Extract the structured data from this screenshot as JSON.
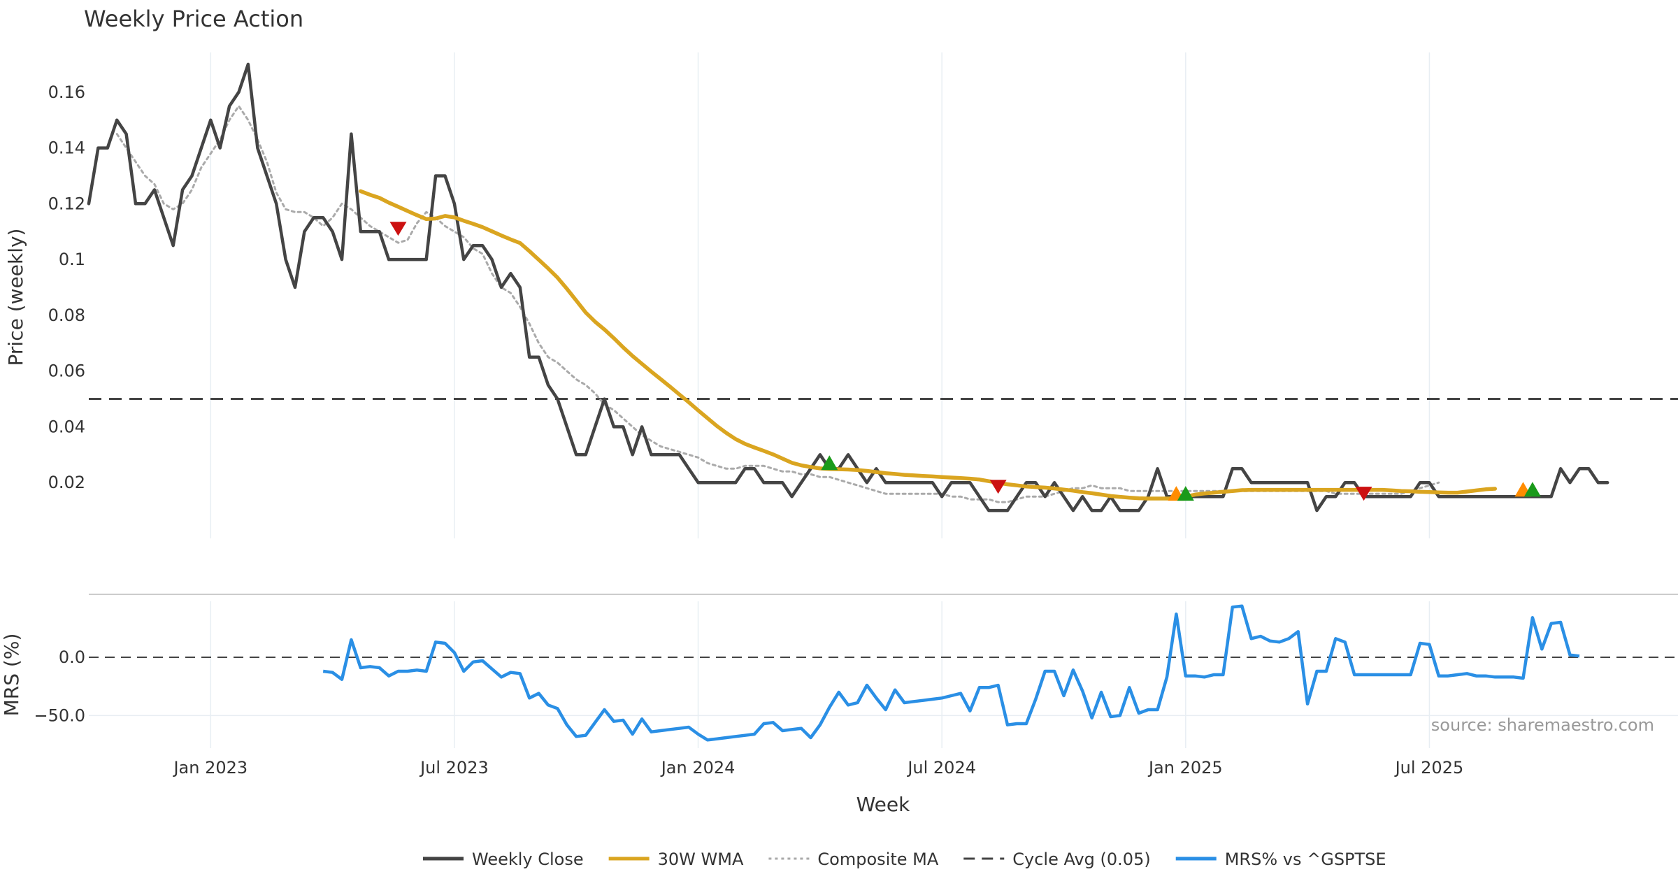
{
  "chart_data": [
    {
      "type": "line",
      "title": "Weekly Price Action",
      "ylabel": "Price (weekly)",
      "ylim": [
        0.0,
        0.178
      ],
      "yticks": [
        0.02,
        0.04,
        0.06,
        0.08,
        0.1,
        0.12,
        0.14,
        0.16
      ],
      "ytick_labels": [
        "0.02",
        "0.04",
        "0.06",
        "0.08",
        "0.1",
        "0.12",
        "0.14",
        "0.16"
      ],
      "x_start": "2022-10-03",
      "x_end": "2025-11-24",
      "x_step": "weekly",
      "grid": "vertical",
      "cycle_avg": 0.05,
      "series": [
        {
          "name": "Weekly Close",
          "color": "#444444",
          "start_index": 0,
          "values": [
            0.12,
            0.14,
            0.14,
            0.15,
            0.145,
            0.12,
            0.12,
            0.125,
            0.115,
            0.105,
            0.125,
            0.13,
            0.14,
            0.15,
            0.14,
            0.155,
            0.16,
            0.17,
            0.14,
            0.13,
            0.12,
            0.1,
            0.09,
            0.11,
            0.115,
            0.115,
            0.11,
            0.1,
            0.145,
            0.11,
            0.11,
            0.11,
            0.1,
            0.1,
            0.1,
            0.1,
            0.1,
            0.13,
            0.13,
            0.12,
            0.1,
            0.105,
            0.105,
            0.1,
            0.09,
            0.095,
            0.09,
            0.065,
            0.065,
            0.055,
            0.05,
            0.04,
            0.03,
            0.03,
            0.04,
            0.05,
            0.04,
            0.04,
            0.03,
            0.04,
            0.03,
            0.03,
            0.03,
            0.03,
            0.025,
            0.02,
            0.02,
            0.02,
            0.02,
            0.02,
            0.025,
            0.025,
            0.02,
            0.02,
            0.02,
            0.015,
            0.02,
            0.025,
            0.03,
            0.025,
            0.025,
            0.03,
            0.025,
            0.02,
            0.025,
            0.02,
            0.02,
            0.02,
            0.02,
            0.02,
            0.02,
            0.015,
            0.02,
            0.02,
            0.02,
            0.015,
            0.01,
            0.01,
            0.01,
            0.015,
            0.02,
            0.02,
            0.015,
            0.02,
            0.015,
            0.01,
            0.015,
            0.01,
            0.01,
            0.015,
            0.01,
            0.01,
            0.01,
            0.015,
            0.025,
            0.015,
            0.015,
            0.015,
            0.015,
            0.015,
            0.015,
            0.015,
            0.025,
            0.025,
            0.02,
            0.02,
            0.02,
            0.02,
            0.02,
            0.02,
            0.02,
            0.01,
            0.015,
            0.015,
            0.02,
            0.02,
            0.015,
            0.015,
            0.015,
            0.015,
            0.015,
            0.015,
            0.02,
            0.02,
            0.015,
            0.015,
            0.015,
            0.015,
            0.015,
            0.015,
            0.015,
            0.015,
            0.015,
            0.015,
            0.015,
            0.015,
            0.015,
            0.025,
            0.02,
            0.025,
            0.025,
            0.02,
            0.02
          ]
        },
        {
          "name": "30W WMA",
          "color": "#DAA520",
          "start_index": 29,
          "values": [
            0.1245,
            0.1232,
            0.1221,
            0.1204,
            0.1189,
            0.1174,
            0.1159,
            0.1145,
            0.1147,
            0.1156,
            0.1151,
            0.1139,
            0.1128,
            0.1116,
            0.1101,
            0.1086,
            0.1072,
            0.1059,
            0.103,
            0.0999,
            0.0968,
            0.0935,
            0.0895,
            0.0853,
            0.081,
            0.0777,
            0.0749,
            0.0718,
            0.0685,
            0.0654,
            0.0626,
            0.0598,
            0.0571,
            0.0544,
            0.0516,
            0.0488,
            0.0459,
            0.0431,
            0.0403,
            0.0378,
            0.0356,
            0.0339,
            0.0326,
            0.0314,
            0.0301,
            0.0286,
            0.0271,
            0.0262,
            0.0256,
            0.0251,
            0.0249,
            0.0248,
            0.0247,
            0.0245,
            0.0242,
            0.0238,
            0.0234,
            0.0231,
            0.0228,
            0.0226,
            0.0224,
            0.0222,
            0.022,
            0.0218,
            0.0216,
            0.0214,
            0.0211,
            0.0205,
            0.0199,
            0.0194,
            0.019,
            0.0186,
            0.0184,
            0.0182,
            0.0179,
            0.0175,
            0.0171,
            0.0166,
            0.0162,
            0.0157,
            0.0152,
            0.0149,
            0.0146,
            0.0144,
            0.0143,
            0.0143,
            0.0143,
            0.0144,
            0.015,
            0.0157,
            0.0161,
            0.0164,
            0.0167,
            0.017,
            0.0173,
            0.0174,
            0.0174,
            0.0174,
            0.0174,
            0.0174,
            0.0174,
            0.0174,
            0.0174,
            0.0174,
            0.0174,
            0.0174,
            0.0174,
            0.0174,
            0.0174,
            0.0174,
            0.0172,
            0.017,
            0.0169,
            0.0167,
            0.0166,
            0.0165,
            0.0164,
            0.0164,
            0.0168,
            0.0172,
            0.0176,
            0.0178
          ]
        },
        {
          "name": "Composite MA",
          "color": "#aaaaaa",
          "start_index": 3,
          "values": [
            0.145,
            0.14,
            0.135,
            0.13,
            0.127,
            0.12,
            0.118,
            0.12,
            0.125,
            0.133,
            0.138,
            0.143,
            0.15,
            0.155,
            0.15,
            0.143,
            0.135,
            0.124,
            0.118,
            0.117,
            0.117,
            0.115,
            0.112,
            0.115,
            0.12,
            0.118,
            0.115,
            0.112,
            0.11,
            0.108,
            0.106,
            0.107,
            0.113,
            0.117,
            0.115,
            0.112,
            0.11,
            0.108,
            0.104,
            0.102,
            0.095,
            0.09,
            0.088,
            0.083,
            0.077,
            0.07,
            0.065,
            0.063,
            0.06,
            0.057,
            0.055,
            0.052,
            0.048,
            0.046,
            0.043,
            0.04,
            0.037,
            0.035,
            0.033,
            0.032,
            0.031,
            0.03,
            0.029,
            0.027,
            0.026,
            0.025,
            0.025,
            0.026,
            0.026,
            0.026,
            0.025,
            0.024,
            0.024,
            0.023,
            0.023,
            0.022,
            0.022,
            0.021,
            0.02,
            0.019,
            0.018,
            0.017,
            0.016,
            0.016,
            0.016,
            0.016,
            0.016,
            0.016,
            0.016,
            0.015,
            0.015,
            0.014,
            0.014,
            0.014,
            0.013,
            0.013,
            0.014,
            0.015,
            0.015,
            0.015,
            0.016,
            0.017,
            0.018,
            0.018,
            0.019,
            0.018,
            0.018,
            0.018,
            0.017,
            0.017,
            0.017,
            0.017,
            0.017,
            0.017,
            0.017,
            0.017,
            0.017,
            0.017,
            0.017,
            0.017,
            0.017,
            0.017,
            0.017,
            0.017,
            0.017,
            0.017,
            0.017,
            0.017,
            0.017,
            0.017,
            0.016,
            0.016,
            0.016,
            0.016,
            0.016,
            0.016,
            0.016,
            0.016,
            0.017,
            0.018,
            0.019,
            0.02
          ]
        }
      ],
      "markers": [
        {
          "label": "sell-signal",
          "index": 33,
          "value": 0.111,
          "direction": "down",
          "color": "#cc1111"
        },
        {
          "label": "buy-signal",
          "index": 79,
          "value": 0.027,
          "direction": "up",
          "color": "#1a9a1a"
        },
        {
          "label": "sell-signal",
          "index": 97,
          "value": 0.0185,
          "direction": "down",
          "color": "#cc1111"
        },
        {
          "label": "warning-signal",
          "index": 116,
          "value": 0.016,
          "direction": "up",
          "color": "#ff8c00"
        },
        {
          "label": "buy-signal",
          "index": 117,
          "value": 0.016,
          "direction": "up",
          "color": "#1a9a1a"
        },
        {
          "label": "sell-signal",
          "index": 136,
          "value": 0.016,
          "direction": "down",
          "color": "#cc1111"
        },
        {
          "label": "warning-signal",
          "index": 153,
          "value": 0.0175,
          "direction": "up",
          "color": "#ff8c00"
        },
        {
          "label": "buy-signal",
          "index": 154,
          "value": 0.0175,
          "direction": "up",
          "color": "#1a9a1a"
        }
      ]
    },
    {
      "type": "line",
      "ylabel": "MRS (%)",
      "xlabel": "Week",
      "ylim": [
        -78,
        48
      ],
      "yticks": [
        0,
        -50
      ],
      "ytick_labels": [
        "0.0",
        "−50.0"
      ],
      "zero_line": 0,
      "x_tick_labels": [
        "Jan 2023",
        "Jul 2023",
        "Jan 2024",
        "Jul 2024",
        "Jan 2025",
        "Jul 2025"
      ],
      "x_tick_dates": [
        "2023-01-02",
        "2023-07-03",
        "2024-01-01",
        "2024-07-01",
        "2024-12-30",
        "2025-06-30"
      ],
      "series": [
        {
          "name": "MRS% vs ^GSPTSE",
          "color": "#2a8fe5",
          "start_index": 25,
          "values": [
            -12,
            -13,
            -19,
            15,
            -9,
            -8,
            -9,
            -16,
            -12,
            -12,
            -11,
            -12,
            13,
            12,
            4,
            -12,
            -4,
            -3,
            -10,
            -17,
            -13,
            -14,
            -35,
            -31,
            -41,
            -44,
            -58,
            -68,
            -67,
            -56,
            -45,
            -55,
            -54,
            -66,
            -53,
            -64,
            -63,
            -62,
            -61,
            -60,
            -66,
            -71,
            -70,
            -69,
            -68,
            -67,
            -66,
            -57,
            -56,
            -63,
            -62,
            -61,
            -69,
            -58,
            -43,
            -30,
            -41,
            -39,
            -24,
            -35,
            -45,
            -28,
            -39,
            -38,
            -37,
            -36,
            -35,
            -33,
            -31,
            -46,
            -26,
            -26,
            -24,
            -58,
            -57,
            -57,
            -36,
            -12,
            -12,
            -33,
            -11,
            -29,
            -52,
            -30,
            -51,
            -50,
            -26,
            -48,
            -45,
            -45,
            -17,
            37,
            -16,
            -16,
            -17,
            -15,
            -15,
            43,
            44,
            16,
            18,
            14,
            13,
            16,
            22,
            -40,
            -12,
            -12,
            16,
            13,
            -15,
            -15,
            -15,
            -15,
            -15,
            -15,
            -15,
            12,
            11,
            -16,
            -16,
            -15,
            -14,
            -16,
            -16,
            -17,
            -17,
            -17,
            -18,
            34,
            7,
            29,
            30,
            2,
            1
          ]
        }
      ]
    }
  ],
  "legend": {
    "placement": "bottom-center",
    "entries": [
      {
        "label": "Weekly Close",
        "color": "#444444",
        "style": "solid"
      },
      {
        "label": "30W WMA",
        "color": "#DAA520",
        "style": "solid"
      },
      {
        "label": "Composite MA",
        "color": "#aaaaaa",
        "style": "dotted"
      },
      {
        "label": "Cycle Avg (0.05)",
        "color": "#444444",
        "style": "dashed"
      },
      {
        "label": "MRS% vs ^GSPTSE",
        "color": "#2a8fe5",
        "style": "solid"
      }
    ]
  },
  "source_note": "source: sharemaestro.com"
}
